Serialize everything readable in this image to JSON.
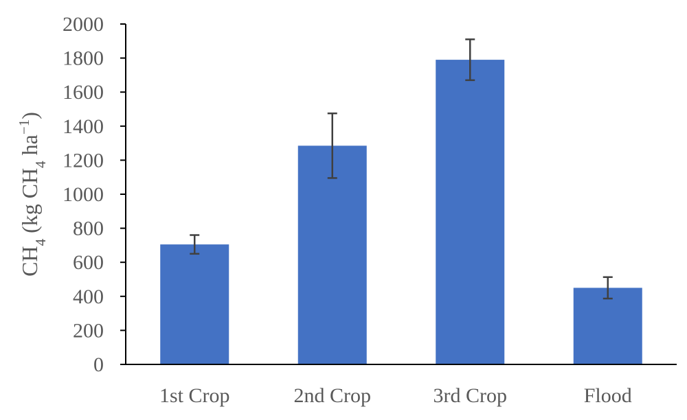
{
  "chart_data": {
    "type": "bar",
    "title": "",
    "xlabel": "",
    "ylabel": {
      "parts": [
        {
          "text": "CH",
          "sub": false
        },
        {
          "text": "4",
          "sub": true
        },
        {
          "text": " (kg CH",
          "sub": false
        },
        {
          "text": "4",
          "sub": true
        },
        {
          "text": " ha",
          "sub": false
        },
        {
          "text": "−1",
          "sub": false,
          "sup": true
        },
        {
          "text": ")",
          "sub": false
        }
      ]
    },
    "categories": [
      "1st Crop",
      "2nd Crop",
      "3rd Crop",
      "Flood"
    ],
    "values": [
      705,
      1285,
      1790,
      450
    ],
    "error": [
      55,
      190,
      120,
      63
    ],
    "ylim": [
      0,
      2000
    ],
    "yticks": [
      0,
      200,
      400,
      600,
      800,
      1000,
      1200,
      1400,
      1600,
      1800,
      2000
    ],
    "grid": false,
    "legend": "none",
    "colors": {
      "bar": "#4472C4",
      "error_bar": "#404040",
      "axis": "#000000",
      "text": "#595959"
    }
  }
}
